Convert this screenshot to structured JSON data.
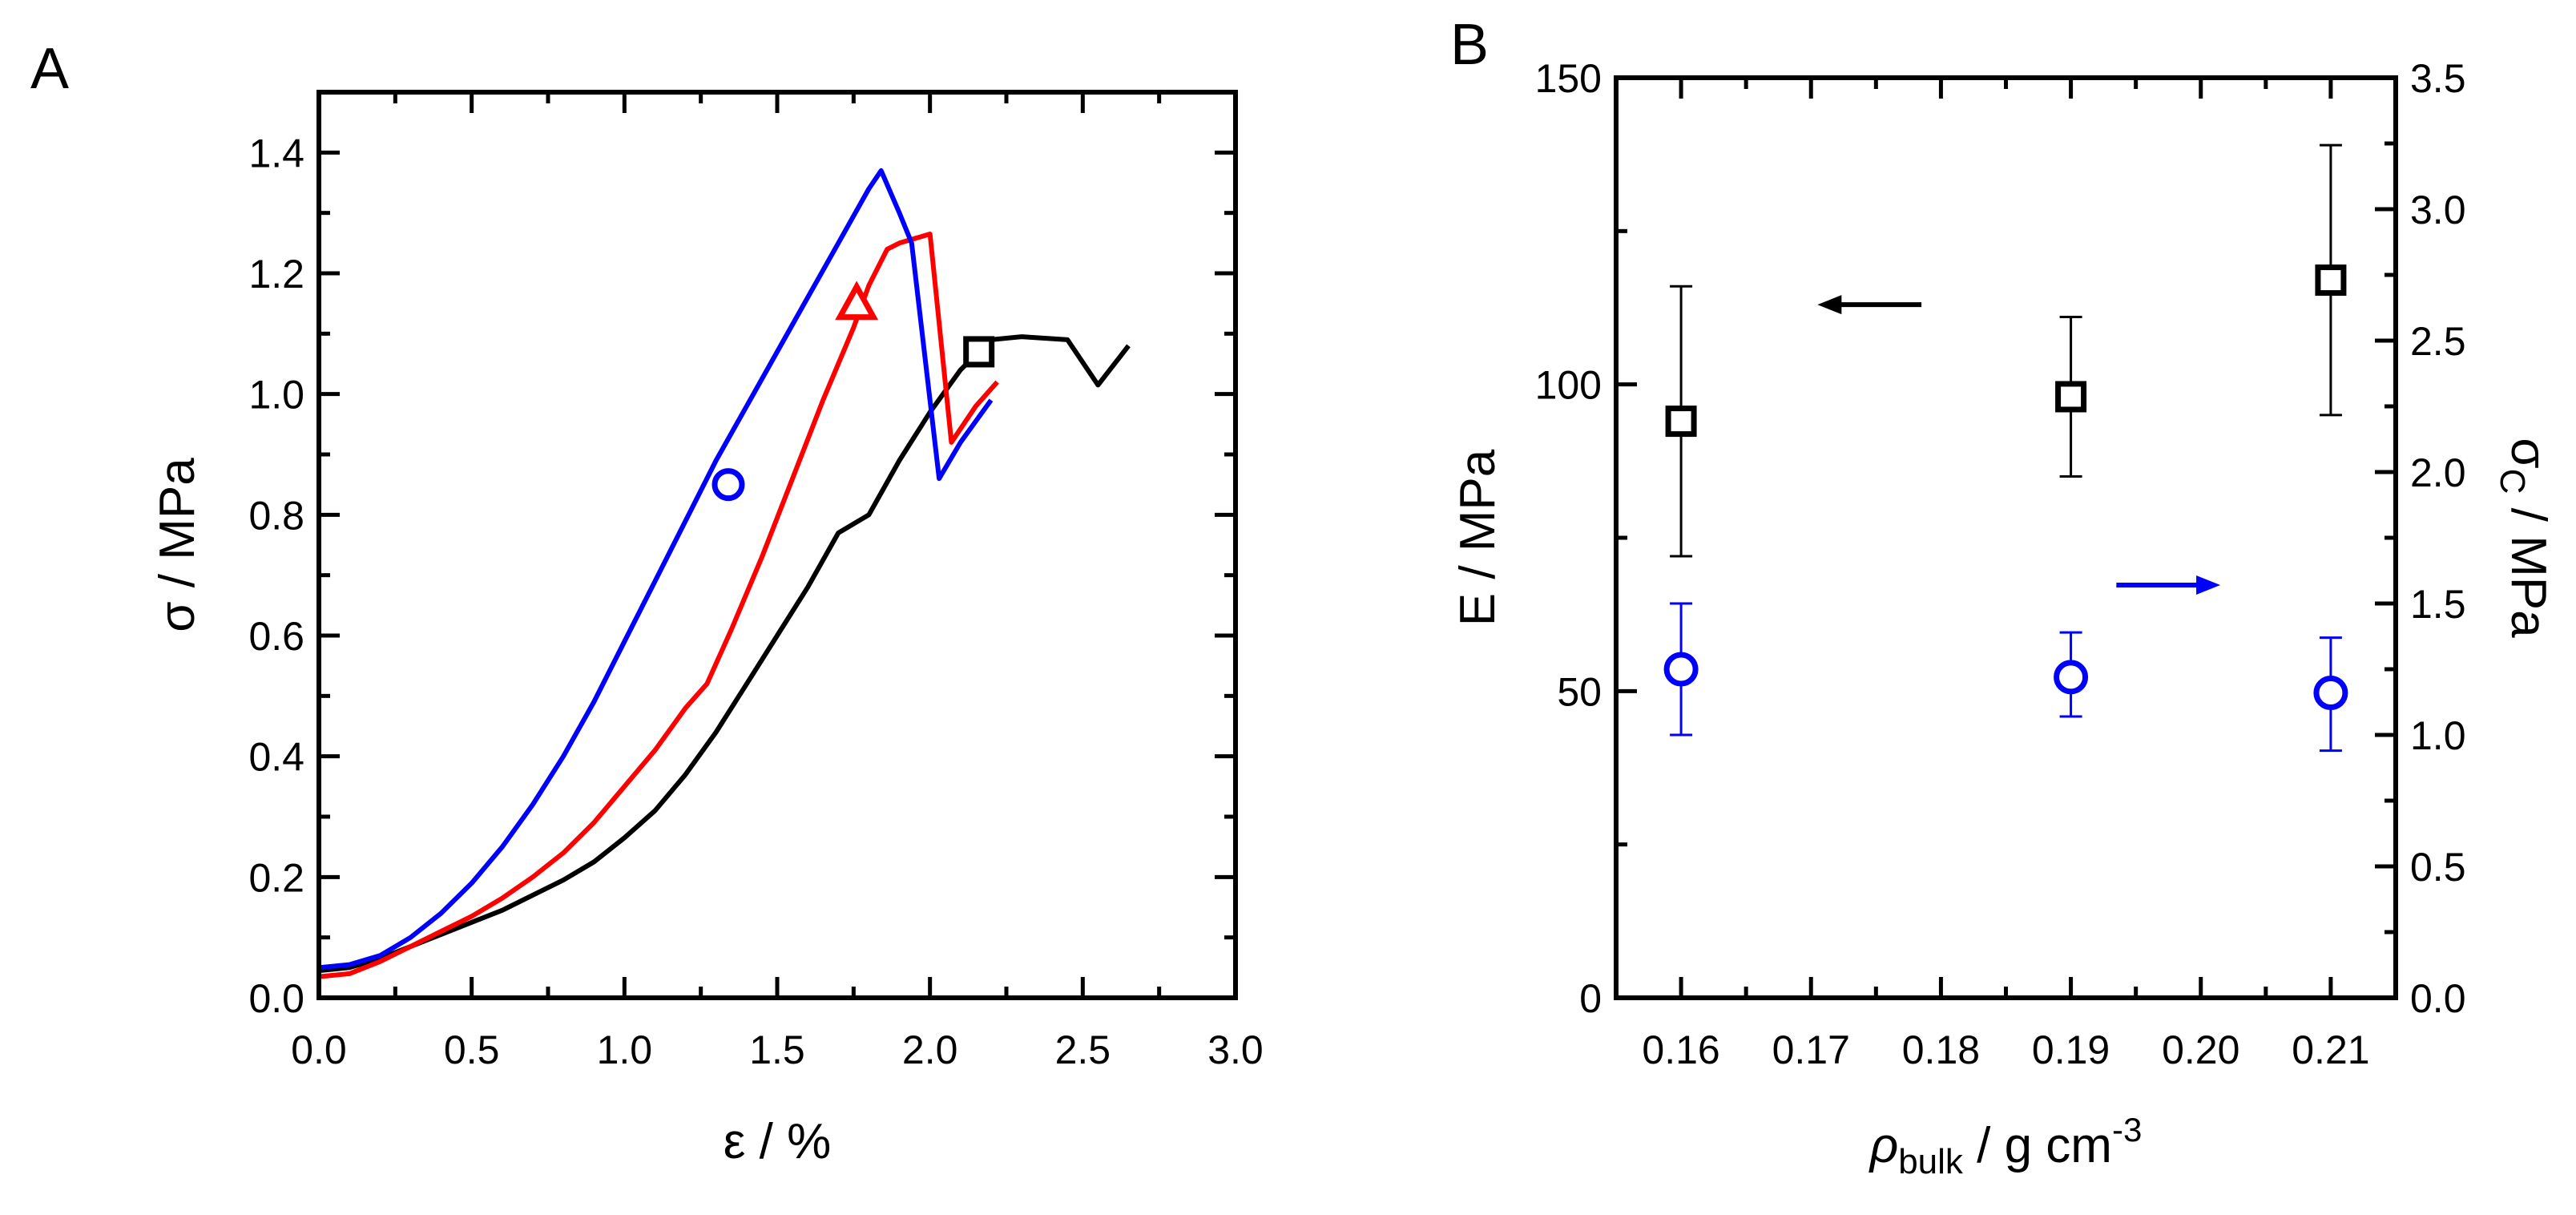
{
  "chart_data": [
    {
      "panel": "A",
      "type": "line",
      "xlabel": "ε / %",
      "ylabel": "σ / MPa",
      "xlim": [
        0,
        3.0
      ],
      "ylim": [
        0,
        1.5
      ],
      "xticks": [
        "0.0",
        "0.5",
        "1.0",
        "1.5",
        "2.0",
        "2.5",
        "3.0"
      ],
      "yticks": [
        "0.0",
        "0.2",
        "0.4",
        "0.6",
        "0.8",
        "1.0",
        "1.2",
        "1.4"
      ],
      "series": [
        {
          "name": "blue",
          "color": "#0000ff",
          "marker": "circle",
          "marker_point": [
            1.34,
            0.85
          ],
          "points": [
            [
              0,
              0.05
            ],
            [
              0.1,
              0.055
            ],
            [
              0.2,
              0.07
            ],
            [
              0.3,
              0.1
            ],
            [
              0.4,
              0.14
            ],
            [
              0.5,
              0.19
            ],
            [
              0.6,
              0.25
            ],
            [
              0.7,
              0.32
            ],
            [
              0.8,
              0.4
            ],
            [
              0.9,
              0.49
            ],
            [
              1.0,
              0.59
            ],
            [
              1.1,
              0.69
            ],
            [
              1.2,
              0.79
            ],
            [
              1.3,
              0.89
            ],
            [
              1.4,
              0.98
            ],
            [
              1.5,
              1.07
            ],
            [
              1.6,
              1.16
            ],
            [
              1.7,
              1.25
            ],
            [
              1.8,
              1.34
            ],
            [
              1.84,
              1.37
            ],
            [
              1.9,
              1.3
            ],
            [
              1.94,
              1.25
            ],
            [
              2.03,
              0.86
            ],
            [
              2.1,
              0.92
            ],
            [
              2.2,
              0.99
            ]
          ]
        },
        {
          "name": "red",
          "color": "#ff0000",
          "marker": "triangle",
          "marker_point": [
            1.76,
            1.15
          ],
          "points": [
            [
              0,
              0.035
            ],
            [
              0.1,
              0.04
            ],
            [
              0.2,
              0.06
            ],
            [
              0.3,
              0.085
            ],
            [
              0.4,
              0.11
            ],
            [
              0.5,
              0.135
            ],
            [
              0.6,
              0.165
            ],
            [
              0.7,
              0.2
            ],
            [
              0.8,
              0.24
            ],
            [
              0.9,
              0.29
            ],
            [
              1.0,
              0.35
            ],
            [
              1.1,
              0.41
            ],
            [
              1.2,
              0.48
            ],
            [
              1.27,
              0.52
            ],
            [
              1.35,
              0.61
            ],
            [
              1.45,
              0.73
            ],
            [
              1.55,
              0.86
            ],
            [
              1.65,
              0.99
            ],
            [
              1.75,
              1.11
            ],
            [
              1.8,
              1.18
            ],
            [
              1.86,
              1.24
            ],
            [
              1.9,
              1.25
            ],
            [
              2.0,
              1.265
            ],
            [
              2.07,
              0.92
            ],
            [
              2.15,
              0.98
            ],
            [
              2.22,
              1.02
            ]
          ]
        },
        {
          "name": "black",
          "color": "#000000",
          "marker": "square",
          "marker_point": [
            2.16,
            1.07
          ],
          "points": [
            [
              0,
              0.045
            ],
            [
              0.1,
              0.05
            ],
            [
              0.2,
              0.065
            ],
            [
              0.3,
              0.085
            ],
            [
              0.4,
              0.105
            ],
            [
              0.5,
              0.125
            ],
            [
              0.6,
              0.145
            ],
            [
              0.7,
              0.17
            ],
            [
              0.8,
              0.195
            ],
            [
              0.9,
              0.225
            ],
            [
              1.0,
              0.265
            ],
            [
              1.1,
              0.31
            ],
            [
              1.2,
              0.37
            ],
            [
              1.3,
              0.44
            ],
            [
              1.4,
              0.52
            ],
            [
              1.5,
              0.6
            ],
            [
              1.6,
              0.68
            ],
            [
              1.7,
              0.77
            ],
            [
              1.8,
              0.8
            ],
            [
              1.9,
              0.89
            ],
            [
              2.0,
              0.97
            ],
            [
              2.1,
              1.04
            ],
            [
              2.2,
              1.09
            ],
            [
              2.3,
              1.095
            ],
            [
              2.45,
              1.09
            ],
            [
              2.55,
              1.015
            ],
            [
              2.65,
              1.08
            ]
          ]
        }
      ]
    },
    {
      "panel": "B",
      "type": "scatter",
      "xlabel_main": "ρ",
      "xlabel_sub": "bulk",
      "xlabel_rest": " / g cm",
      "xlabel_sup": "-3",
      "ylabel_left": "E / MPa",
      "ylabel_right_main": "σ",
      "ylabel_right_sub": "C",
      "ylabel_right_rest": " / MPa",
      "xlim": [
        0.155,
        0.215
      ],
      "ylim_left": [
        0,
        150
      ],
      "ylim_right": [
        0,
        3.5
      ],
      "xticks": [
        "0.16",
        "0.17",
        "0.18",
        "0.19",
        "0.20",
        "0.21"
      ],
      "yticks_left": [
        "0",
        "50",
        "100",
        "150"
      ],
      "yticks_right": [
        "0.0",
        "0.5",
        "1.0",
        "1.5",
        "2.0",
        "2.5",
        "3.0",
        "3.5"
      ],
      "series": [
        {
          "name": "E",
          "axis": "left",
          "color": "#000000",
          "marker": "square",
          "x": [
            0.16,
            0.19,
            0.21
          ],
          "y": [
            94,
            98,
            117
          ],
          "err_low": [
            72,
            85,
            95
          ],
          "err_high": [
            116,
            111,
            139
          ]
        },
        {
          "name": "σC",
          "axis": "right",
          "color": "#0000ff",
          "marker": "circle",
          "x": [
            0.16,
            0.19,
            0.21
          ],
          "y": [
            1.25,
            1.22,
            1.16
          ],
          "err_low": [
            1.0,
            1.07,
            0.94
          ],
          "err_high": [
            1.5,
            1.39,
            1.37
          ]
        }
      ],
      "arrows": [
        {
          "name": "left-axis-arrow",
          "direction": "left",
          "color": "#000000",
          "x_from": 0.1785,
          "x_to": 0.1705,
          "y_left": 113
        },
        {
          "name": "right-axis-arrow",
          "direction": "right",
          "color": "#0000ff",
          "x_from": 0.1935,
          "x_to": 0.2015,
          "y_right": 1.57
        }
      ]
    }
  ],
  "panel_labels": {
    "a": "A",
    "b": "B"
  }
}
